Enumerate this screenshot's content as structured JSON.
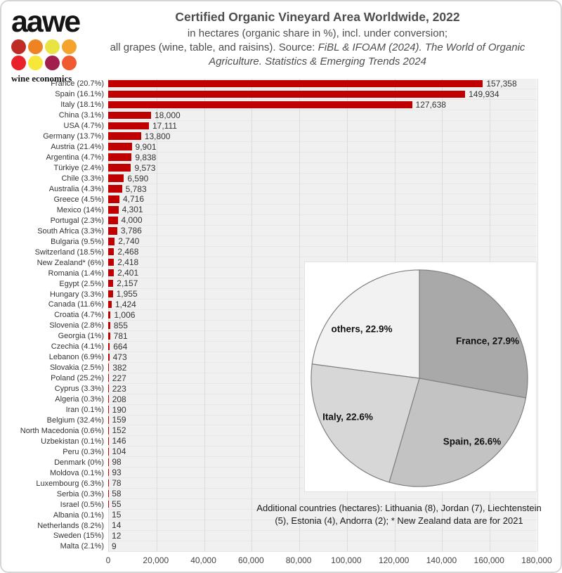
{
  "logo": {
    "brand": "aawe",
    "tagline": "wine economics",
    "dot_colors": [
      "#bf2b25",
      "#ef8222",
      "#e9e441",
      "#f4a42d",
      "#e92128",
      "#f7e73b",
      "#a21e4d",
      "#ef5b2e"
    ]
  },
  "header": {
    "title": "Certified Organic Vineyard Area Worldwide, 2022",
    "subtitle_line1": "in hectares (organic share in %), incl. under conversion;",
    "subtitle_line2_plain": "all grapes (wine, table, and raisins). Source: ",
    "subtitle_line2_italic": "FiBL & IFOAM (2024). The World of Organic Agriculture. Statistics & Emerging Trends 2024"
  },
  "footnote": "Additional countries (hectares): Lithuania (8), Jordan (7), Liechtenstein (5), Estonia (4), Andorra (2); * New Zealand data are for 2021",
  "colors": {
    "bar": "#c00000",
    "plot_bg": "#f1f0f0",
    "row_line": "#e7e6e6",
    "gridline": "#dcdcdc",
    "pie_stroke": "#7f7f7f",
    "title_text": "#4d4d4d"
  },
  "chart_data": [
    {
      "type": "bar",
      "orientation": "horizontal",
      "title": "Certified Organic Vineyard Area Worldwide, 2022 (hectares)",
      "categories": [
        "France (20.7%)",
        "Spain (16.1%)",
        "Italy (18.1%)",
        "China (3.1%)",
        "USA (4.7%)",
        "Germany (13.7%)",
        "Austria (21.4%)",
        "Argentina (4.7%)",
        "Türkiye (2.4%)",
        "Chile (3.3%)",
        "Australia (4.3%)",
        "Greece (4.5%)",
        "Mexico (14%)",
        "Portugal (2.3%)",
        "South Africa (3.3%)",
        "Bulgaria (9.5%)",
        "Switzerland (18.5%)",
        "New Zealand* (6%)",
        "Romania (1.4%)",
        "Egypt (2.5%)",
        "Hungary (3.3%)",
        "Canada (11.6%)",
        "Croatia (4.7%)",
        "Slovenia (2.8%)",
        "Georgia (1%)",
        "Czechia (4.1%)",
        "Lebanon (6.9%)",
        "Slovakia (2.5%)",
        "Poland (25.2%)",
        "Cyprus (3.3%)",
        "Algeria (0.3%)",
        "Iran (0.1%)",
        "Belgium (32.4%)",
        "North Macedonia (0.6%)",
        "Uzbekistan (0.1%)",
        "Peru (0.3%)",
        "Denmark (0%)",
        "Moldova (0.1%)",
        "Luxembourg (6.3%)",
        "Serbia (0.3%)",
        "Israel (0.5%)",
        "Albania (0.1%)",
        "Netherlands (8.2%)",
        "Sweden (15%)",
        "Malta (2.1%)"
      ],
      "values": [
        157358,
        149934,
        127638,
        18000,
        17111,
        13800,
        9901,
        9838,
        9573,
        6590,
        5783,
        4716,
        4301,
        4000,
        3786,
        2740,
        2468,
        2418,
        2401,
        2157,
        1955,
        1424,
        1006,
        855,
        781,
        664,
        473,
        382,
        227,
        223,
        208,
        190,
        159,
        152,
        146,
        104,
        98,
        93,
        78,
        58,
        55,
        15,
        14,
        12,
        9
      ],
      "xlim": [
        0,
        180000
      ],
      "x_ticks": [
        "0",
        "20,000",
        "40,000",
        "60,000",
        "80,000",
        "100,000",
        "120,000",
        "140,000",
        "160,000",
        "180,000"
      ],
      "grid": true,
      "bar_color": "#c00000",
      "value_labels_visible": true
    },
    {
      "type": "pie",
      "labels": [
        "France, 27.9%",
        "Spain, 26.6%",
        "Italy, 22.6%",
        "others, 22.9%"
      ],
      "values": [
        27.9,
        26.6,
        22.6,
        22.9
      ],
      "colors": [
        "#a9a9a9",
        "#c3c3c3",
        "#d7d7d7",
        "#f2f2f2"
      ],
      "start_angle_deg": 0,
      "direction": "clockwise",
      "legend_position": "labels-inside-slices"
    }
  ]
}
